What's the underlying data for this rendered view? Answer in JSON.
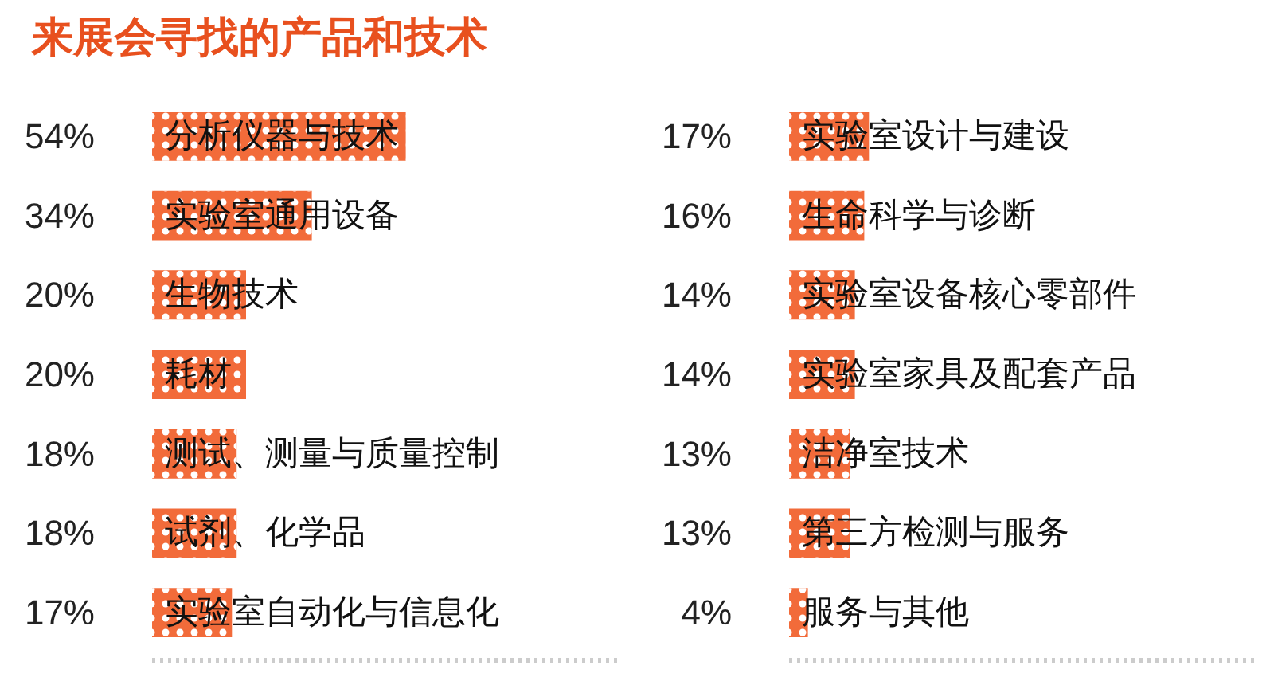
{
  "chart_data": [
    {
      "type": "bar",
      "orientation": "horizontal",
      "title": "来展会寻找的产品和技术",
      "categories": [
        "分析仪器与技术",
        "实验室通用设备",
        "生物技术",
        "耗材",
        "测试、测量与质量控制",
        "试剂、化学品",
        "实验室自动化与信息化"
      ],
      "values": [
        54,
        34,
        20,
        20,
        18,
        18,
        17
      ],
      "value_labels": [
        "54%",
        "34%",
        "20%",
        "20%",
        "18%",
        "18%",
        "17%"
      ],
      "color": "#f26b3a",
      "xlim": [
        0,
        100
      ],
      "tick_labels": "y"
    },
    {
      "type": "bar",
      "orientation": "horizontal",
      "categories": [
        "实验室设计与建设",
        "生命科学与诊断",
        "实验室设备核心零部件",
        "实验室家具及配套产品",
        "洁净室技术",
        "第三方检测与服务",
        "服务与其他"
      ],
      "values": [
        17,
        16,
        14,
        14,
        13,
        13,
        4
      ],
      "value_labels": [
        "17%",
        "16%",
        "14%",
        "14%",
        "13%",
        "13%",
        "4%"
      ],
      "color": "#f26b3a",
      "xlim": [
        0,
        100
      ],
      "tick_labels": "y"
    }
  ]
}
